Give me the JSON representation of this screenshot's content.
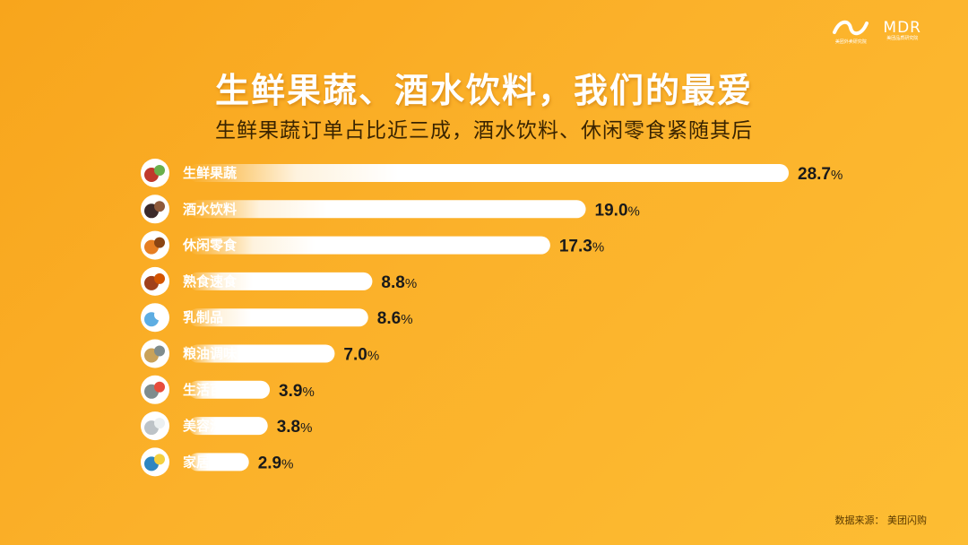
{
  "header": {
    "logo_brand": "MDR",
    "logo_brand_sub": "美团品质研究院",
    "logo_wave_sub": "美团外卖研究院"
  },
  "title": "生鲜果蔬、酒水饮料，我们的最爱",
  "subtitle": "生鲜果蔬订单占比近三成，酒水饮料、休闲零食紧随其后",
  "source": "数据来源：  美团闪购",
  "chart_data": {
    "type": "bar",
    "orientation": "horizontal",
    "categories": [
      "生鲜果蔬",
      "酒水饮料",
      "休闲零食",
      "熟食速食",
      "乳制品",
      "粮油调味",
      "生活百货",
      "美容洗护",
      "家居清洁"
    ],
    "values": [
      28.7,
      19.0,
      17.3,
      8.8,
      8.6,
      7.0,
      3.9,
      3.8,
      2.9
    ],
    "value_labels": [
      "28.7",
      "19.0",
      "17.3",
      "8.8",
      "8.6",
      "7.0",
      "3.9",
      "3.8",
      "2.9"
    ],
    "unit": "%",
    "icons": [
      "vegetables-icon",
      "wine-bottle-icon",
      "snacks-icon",
      "roast-meat-icon",
      "milk-icon",
      "grain-oil-icon",
      "store-shelf-icon",
      "lotion-icon",
      "cleaning-icon"
    ],
    "bar_color": "#ffffff",
    "value_color": "#1a1a1a",
    "background_colors": [
      "#f8a51c",
      "#fdbd33"
    ]
  }
}
